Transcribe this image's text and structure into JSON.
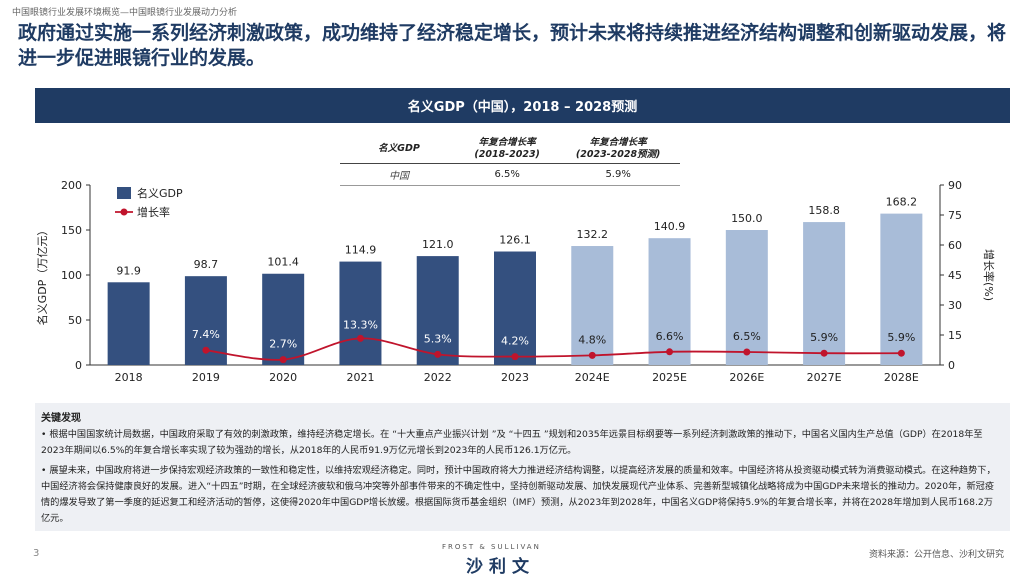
{
  "breadcrumb": "中国眼镜行业发展环境概览—中国眼镜行业发展动力分析",
  "headline": "政府通过实施一系列经济刺激政策，成功维持了经济稳定增长，预计未来将持续推进经济结构调整和创新驱动发展，将进一步促进眼镜行业的发展。",
  "banner_title": "名义GDP（中国），2018 – 2028预测",
  "cagr_table": {
    "header_label": "名义GDP",
    "col1": "年复合增长率\n(2018-2023)",
    "col2": "年复合增长率\n(2023-2028预测)",
    "row_label": "中国",
    "val1": "6.5%",
    "val2": "5.9%"
  },
  "chart_data": {
    "type": "bar",
    "categories": [
      "2018",
      "2019",
      "2020",
      "2021",
      "2022",
      "2023",
      "2024E",
      "2025E",
      "2026E",
      "2027E",
      "2028E"
    ],
    "series": [
      {
        "name": "名义GDP",
        "axis": "left",
        "values": [
          91.9,
          98.7,
          101.4,
          114.9,
          121.0,
          126.1,
          132.2,
          140.9,
          150.0,
          158.8,
          168.2
        ]
      },
      {
        "name": "增长率",
        "axis": "right",
        "type": "line",
        "values": [
          null,
          7.4,
          2.7,
          13.3,
          5.3,
          4.2,
          4.8,
          6.6,
          6.5,
          5.9,
          5.9
        ]
      }
    ],
    "value_labels": [
      "91.9",
      "98.7",
      "101.4",
      "114.9",
      "121.0",
      "126.1",
      "132.2",
      "140.9",
      "150.0",
      "158.8",
      "168.2"
    ],
    "rate_labels": [
      "",
      "7.4%",
      "2.7%",
      "13.3%",
      "5.3%",
      "4.2%",
      "4.8%",
      "6.6%",
      "6.5%",
      "5.9%",
      "5.9%"
    ],
    "ylabel": "名义GDP（万亿元）",
    "y2label": "增长率(%)",
    "ylim": [
      0,
      200
    ],
    "y2lim": [
      0,
      90
    ],
    "yticks": [
      "0",
      "50",
      "100",
      "150",
      "200"
    ],
    "y2ticks": [
      "0",
      "15",
      "30",
      "45",
      "60",
      "75",
      "90"
    ],
    "forecast_from_index": 6,
    "colors": {
      "actual": "#34507f",
      "forecast": "#a8bcd8",
      "line": "#c0142c"
    },
    "legend_position": "top-left"
  },
  "findings": {
    "title": "关键发现",
    "bullet1": "• 根据中国国家统计局数据，中国政府采取了有效的刺激政策，维持经济稳定增长。在 “十大重点产业振兴计划 ”及 “十四五 ”规划和2035年远景目标纲要等一系列经济刺激政策的推动下，中国名义国内生产总值（GDP）在2018年至2023年期间以6.5%的年复合增长率实现了较为强劲的增长，从2018年的人民币91.9万亿元增长到2023年的人民币126.1万亿元。",
    "bullet2": "• 展望未来，中国政府将进一步保持宏观经济政策的一致性和稳定性，以维持宏观经济稳定。同时，预计中国政府将大力推进经济结构调整，以提高经济发展的质量和效率。中国经济将从投资驱动模式转为消费驱动模式。在这种趋势下，中国经济将会保持健康良好的发展。进入“十四五”时期，在全球经济疲软和俄乌冲突等外部事件带来的不确定性中，坚持创新驱动发展、加快发展现代产业体系、完善新型城镇化战略将成为中国GDP未来增长的推动力。2020年，新冠疫情的爆发导致了第一季度的延迟复工和经济活动的暂停，这使得2020年中国GDP增长放缓。根据国际货币基金组织（IMF）预测，从2023年到2028年，中国名义GDP将保持5.9%的年复合增长率，并将在2028年增加到人民币168.2万亿元。"
  },
  "footer": {
    "page_number": "3",
    "logo_en": "FROST & SULLIVAN",
    "logo_cn": "沙利文",
    "source": "资料来源：公开信息、沙利文研究"
  }
}
